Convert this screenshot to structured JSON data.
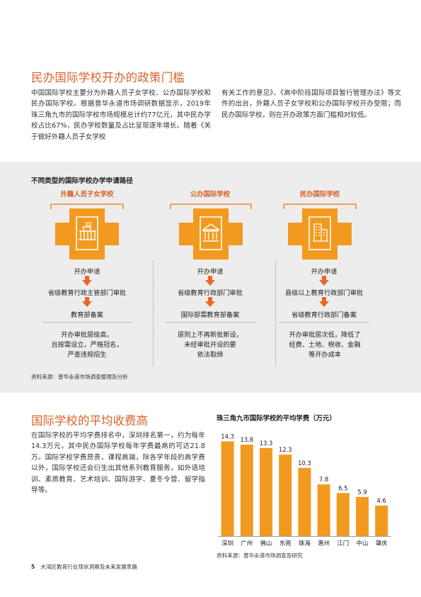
{
  "section1": {
    "title": "民办国际学校开办的政策门槛",
    "para_left": "中国国际学校主要分为外籍人员子女学校、公办国际学校和民办国际学校。根据普华永道市场调研数据显示，2019年珠三角九市的国际学校市场规模总计约77亿元，其中民办学校占比67%，民办学校数量及占比呈现逐年增长。随着《关于做好外籍人员子女学校",
    "para_right": "有关工作的意见》、《高中阶段国际项目暂行管理办法》等文件的出台，外籍人员子女学校和公办国际学校开办受限；而民办国际学校，则在开办政策方面门槛相对较低。"
  },
  "flow": {
    "title": "不同类型的国际学校办学申请路径",
    "columns": [
      {
        "title": "外籍人员子女学校",
        "icon": "foreign-school-building-icon",
        "steps": [
          "开办申请",
          "省级教育行政主管部门审批",
          "教育部备案"
        ],
        "note": "开办审批层级高，\n且按需设立，严格冠名，\n严查违规招生"
      },
      {
        "title": "公办国际学校",
        "icon": "public-school-columns-icon",
        "steps": [
          "开办申请",
          "省级教育行政部门审批",
          "国际部需教育部备案"
        ],
        "note": "原则上不再新批新设，\n未经审批开设的要\n依法取缔"
      },
      {
        "title": "民办国际学校",
        "icon": "private-school-tower-icon",
        "steps": [
          "开办申请",
          "县级以上教育行政部门审批",
          "省级教育行政部门备案"
        ],
        "note": "开办审批层次低，降低了\n经费、土地、税收、金融\n等开办成本"
      }
    ],
    "source": "资料来源：普华永道市场调查整理及分析"
  },
  "section2": {
    "title": "国际学校的平均收费高",
    "para": "在国际学校的平均学费排名中，深圳排名第一，约为每年14.3万元，其中民办国际学校每年学费最高的可达21.8万。国际学校学费昂贵，课程高端，除各学年段的高学费以外，国际学校还会衍生出其他系列教育服务，如外语培训、素质教育、艺术培训、国际游学、夏冬令营、留学指导等。"
  },
  "chart_data": {
    "type": "bar",
    "title": "珠三角九市国际学校的平均学费（万元）",
    "categories": [
      "深圳",
      "广州",
      "佛山",
      "东莞",
      "珠海",
      "惠州",
      "江门",
      "中山",
      "肇庆"
    ],
    "values": [
      14.3,
      13.8,
      13.3,
      12.3,
      10.3,
      7.8,
      6.5,
      5.9,
      4.6
    ],
    "value_labels": [
      "14.3",
      "13.8",
      "13.3",
      "12.3",
      "10.3",
      "7.8",
      "6.5",
      "5.9",
      "4.6"
    ],
    "ylim": [
      0,
      15
    ],
    "bar_color": "#f29a1f",
    "grid": false,
    "source": "资料来源：普华永道市场调查及研究"
  },
  "footer": {
    "page_number": "5",
    "text": "大湾区教育行业现状洞察及未来发展思路"
  },
  "colors": {
    "accent": "#d9622b",
    "orange": "#f08a24",
    "bar": "#f29a1f",
    "panel": "#ededed"
  }
}
